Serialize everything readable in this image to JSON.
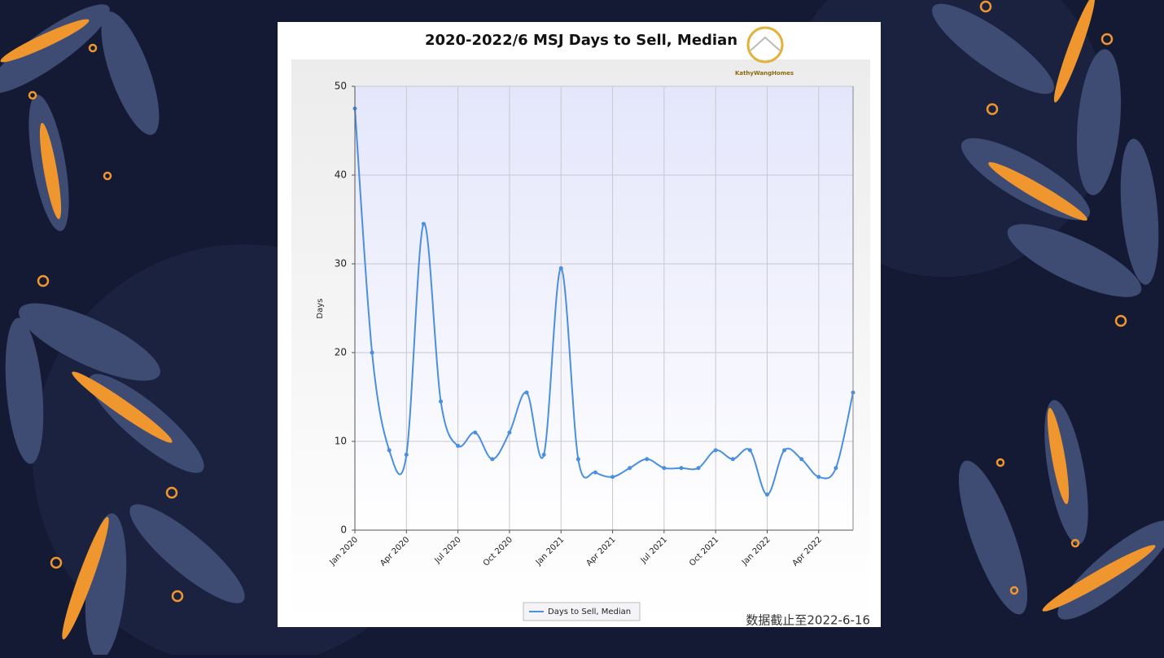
{
  "chart_data": {
    "type": "line",
    "title": "2020-2022/6 MSJ Days to Sell, Median",
    "logo_text": "KathyWangHomes",
    "y_label": "Days",
    "note": "数据截止至2022-6-16",
    "categories": [
      "Jan 2020",
      null,
      null,
      "Apr 2020",
      null,
      null,
      "Jul 2020",
      null,
      null,
      "Oct 2020",
      null,
      null,
      "Jan 2021",
      null,
      null,
      "Apr 2021",
      null,
      null,
      "Jul 2021",
      null,
      null,
      "Oct 2021",
      null,
      null,
      "Jan 2022",
      null,
      null,
      "Apr 2022",
      null,
      null
    ],
    "series": [
      {
        "name": "Days to Sell, Median",
        "color": "#4a8fe0",
        "values": [
          47.5,
          20,
          9,
          8.5,
          34.5,
          14.5,
          9.5,
          11,
          8,
          11,
          15.5,
          8.5,
          29.5,
          8,
          6.5,
          6,
          7,
          8,
          7,
          7,
          7,
          9,
          8,
          9,
          4,
          9,
          8,
          6,
          7,
          15.5
        ]
      }
    ],
    "ylim": [
      0,
      50
    ],
    "yticks": [
      0,
      10,
      20,
      30,
      40,
      50
    ],
    "grid": true
  }
}
